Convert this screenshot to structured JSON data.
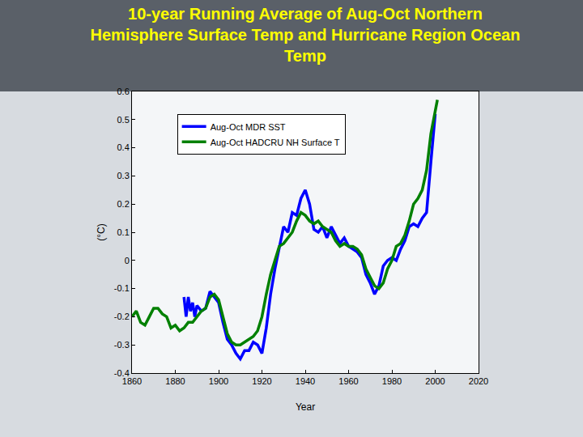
{
  "chart_data": {
    "type": "line",
    "title": "10-year Running Average of Aug-Oct Northern Hemisphere Surface Temp and Hurricane Region Ocean Temp",
    "x_label": "Year",
    "y_label": "(°C)",
    "xlim": [
      1860,
      2020
    ],
    "xticks": [
      1860,
      1880,
      1900,
      1920,
      1940,
      1960,
      1980,
      2000,
      2020
    ],
    "ylim": [
      -0.4,
      0.6
    ],
    "yticks": [
      -0.4,
      -0.3,
      -0.2,
      -0.1,
      0,
      0.1,
      0.2,
      0.3,
      0.4,
      0.5,
      0.6
    ],
    "grid": false,
    "legend": "upper left",
    "series": [
      {
        "name": "Aug-Oct MDR SST",
        "color": "#0000ff",
        "x": [
          1884,
          1885,
          1886,
          1887,
          1888,
          1889,
          1890,
          1892,
          1894,
          1896,
          1898,
          1900,
          1902,
          1904,
          1906,
          1908,
          1910,
          1912,
          1914,
          1916,
          1918,
          1920,
          1922,
          1924,
          1926,
          1928,
          1930,
          1932,
          1934,
          1936,
          1938,
          1940,
          1942,
          1944,
          1946,
          1948,
          1950,
          1952,
          1954,
          1956,
          1958,
          1960,
          1962,
          1964,
          1966,
          1968,
          1970,
          1972,
          1974,
          1976,
          1978,
          1980,
          1982,
          1984,
          1986,
          1988,
          1990,
          1992,
          1994,
          1996,
          1998,
          2000
        ],
        "values": [
          -0.13,
          -0.2,
          -0.13,
          -0.18,
          -0.15,
          -0.2,
          -0.16,
          -0.18,
          -0.17,
          -0.11,
          -0.13,
          -0.15,
          -0.22,
          -0.28,
          -0.3,
          -0.33,
          -0.35,
          -0.32,
          -0.32,
          -0.29,
          -0.3,
          -0.33,
          -0.24,
          -0.12,
          -0.03,
          0.05,
          0.12,
          0.1,
          0.17,
          0.16,
          0.22,
          0.25,
          0.2,
          0.11,
          0.1,
          0.12,
          0.08,
          0.12,
          0.09,
          0.06,
          0.08,
          0.05,
          0.04,
          0.03,
          0.01,
          -0.05,
          -0.08,
          -0.12,
          -0.09,
          -0.02,
          0,
          0.01,
          0,
          0.04,
          0.07,
          0.12,
          0.13,
          0.12,
          0.15,
          0.17,
          0.35,
          0.52
        ]
      },
      {
        "name": "Aug-Oct HADCRU NH Surface T",
        "color": "#008000",
        "x": [
          1860,
          1862,
          1864,
          1866,
          1868,
          1870,
          1872,
          1874,
          1876,
          1878,
          1880,
          1882,
          1884,
          1886,
          1888,
          1890,
          1892,
          1894,
          1896,
          1898,
          1900,
          1902,
          1904,
          1906,
          1908,
          1910,
          1912,
          1914,
          1916,
          1918,
          1920,
          1922,
          1924,
          1926,
          1928,
          1930,
          1932,
          1934,
          1936,
          1938,
          1940,
          1942,
          1944,
          1946,
          1948,
          1950,
          1952,
          1954,
          1956,
          1958,
          1960,
          1962,
          1964,
          1966,
          1968,
          1970,
          1972,
          1974,
          1976,
          1978,
          1980,
          1982,
          1984,
          1986,
          1988,
          1990,
          1992,
          1994,
          1996,
          1998,
          2000,
          2001
        ],
        "values": [
          -0.2,
          -0.18,
          -0.22,
          -0.23,
          -0.2,
          -0.17,
          -0.17,
          -0.19,
          -0.2,
          -0.24,
          -0.23,
          -0.25,
          -0.24,
          -0.22,
          -0.22,
          -0.2,
          -0.18,
          -0.17,
          -0.13,
          -0.12,
          -0.14,
          -0.2,
          -0.26,
          -0.29,
          -0.3,
          -0.3,
          -0.29,
          -0.28,
          -0.27,
          -0.25,
          -0.2,
          -0.12,
          -0.05,
          0,
          0.05,
          0.06,
          0.08,
          0.1,
          0.14,
          0.17,
          0.16,
          0.14,
          0.13,
          0.14,
          0.12,
          0.11,
          0.1,
          0.07,
          0.05,
          0.06,
          0.05,
          0.05,
          0.04,
          0.02,
          -0.03,
          -0.06,
          -0.09,
          -0.1,
          -0.08,
          -0.03,
          0,
          0.05,
          0.06,
          0.09,
          0.14,
          0.2,
          0.22,
          0.25,
          0.32,
          0.45,
          0.53,
          0.57
        ]
      }
    ]
  }
}
